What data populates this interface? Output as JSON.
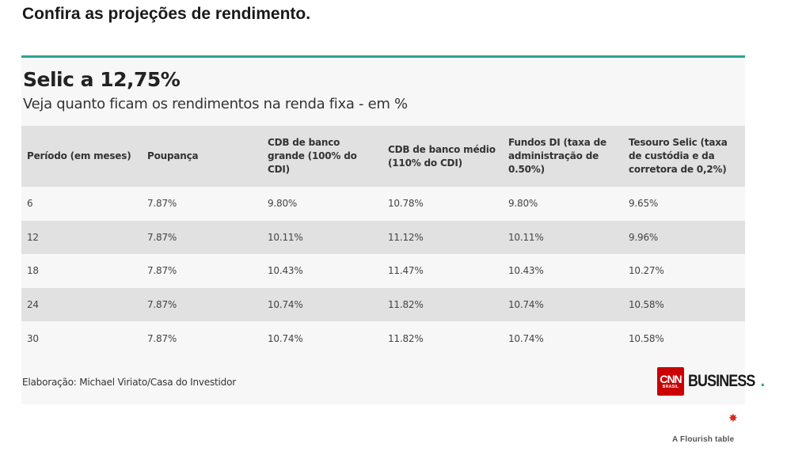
{
  "headline": "Confira as projeções de rendimento.",
  "card": {
    "title": "Selic a 12,75%",
    "subtitle": "Veja quanto ficam os rendimentos na renda fixa - em %",
    "accent_color": "#2aa595"
  },
  "table": {
    "headers": [
      "Período (em meses)",
      "Poupança",
      "CDB de banco grande (100% do CDI)",
      "CDB de banco médio (110% do CDI)",
      "Fundos DI (taxa de administração de 0.50%)",
      "Tesouro Selic (taxa de custódia e da corretora de 0,2%)"
    ],
    "rows": [
      [
        "6",
        "7.87%",
        "9.80%",
        "10.78%",
        "9.80%",
        "9.65%"
      ],
      [
        "12",
        "7.87%",
        "10.11%",
        "11.12%",
        "10.11%",
        "9.96%"
      ],
      [
        "18",
        "7.87%",
        "10.43%",
        "11.47%",
        "10.43%",
        "10.27%"
      ],
      [
        "24",
        "7.87%",
        "10.74%",
        "11.82%",
        "10.74%",
        "10.58%"
      ],
      [
        "30",
        "7.87%",
        "10.74%",
        "11.82%",
        "10.74%",
        "10.58%"
      ]
    ]
  },
  "footer": {
    "source": "Elaboração: Michael Viriato/Casa do Investidor",
    "logo_cnn": "CNN",
    "logo_brasil": "BRASIL",
    "logo_word": "BUSINESS",
    "logo_dot": ".",
    "logo_color": "#cc0000"
  },
  "flourish": {
    "mark": "✸",
    "label": "A Flourish table"
  }
}
